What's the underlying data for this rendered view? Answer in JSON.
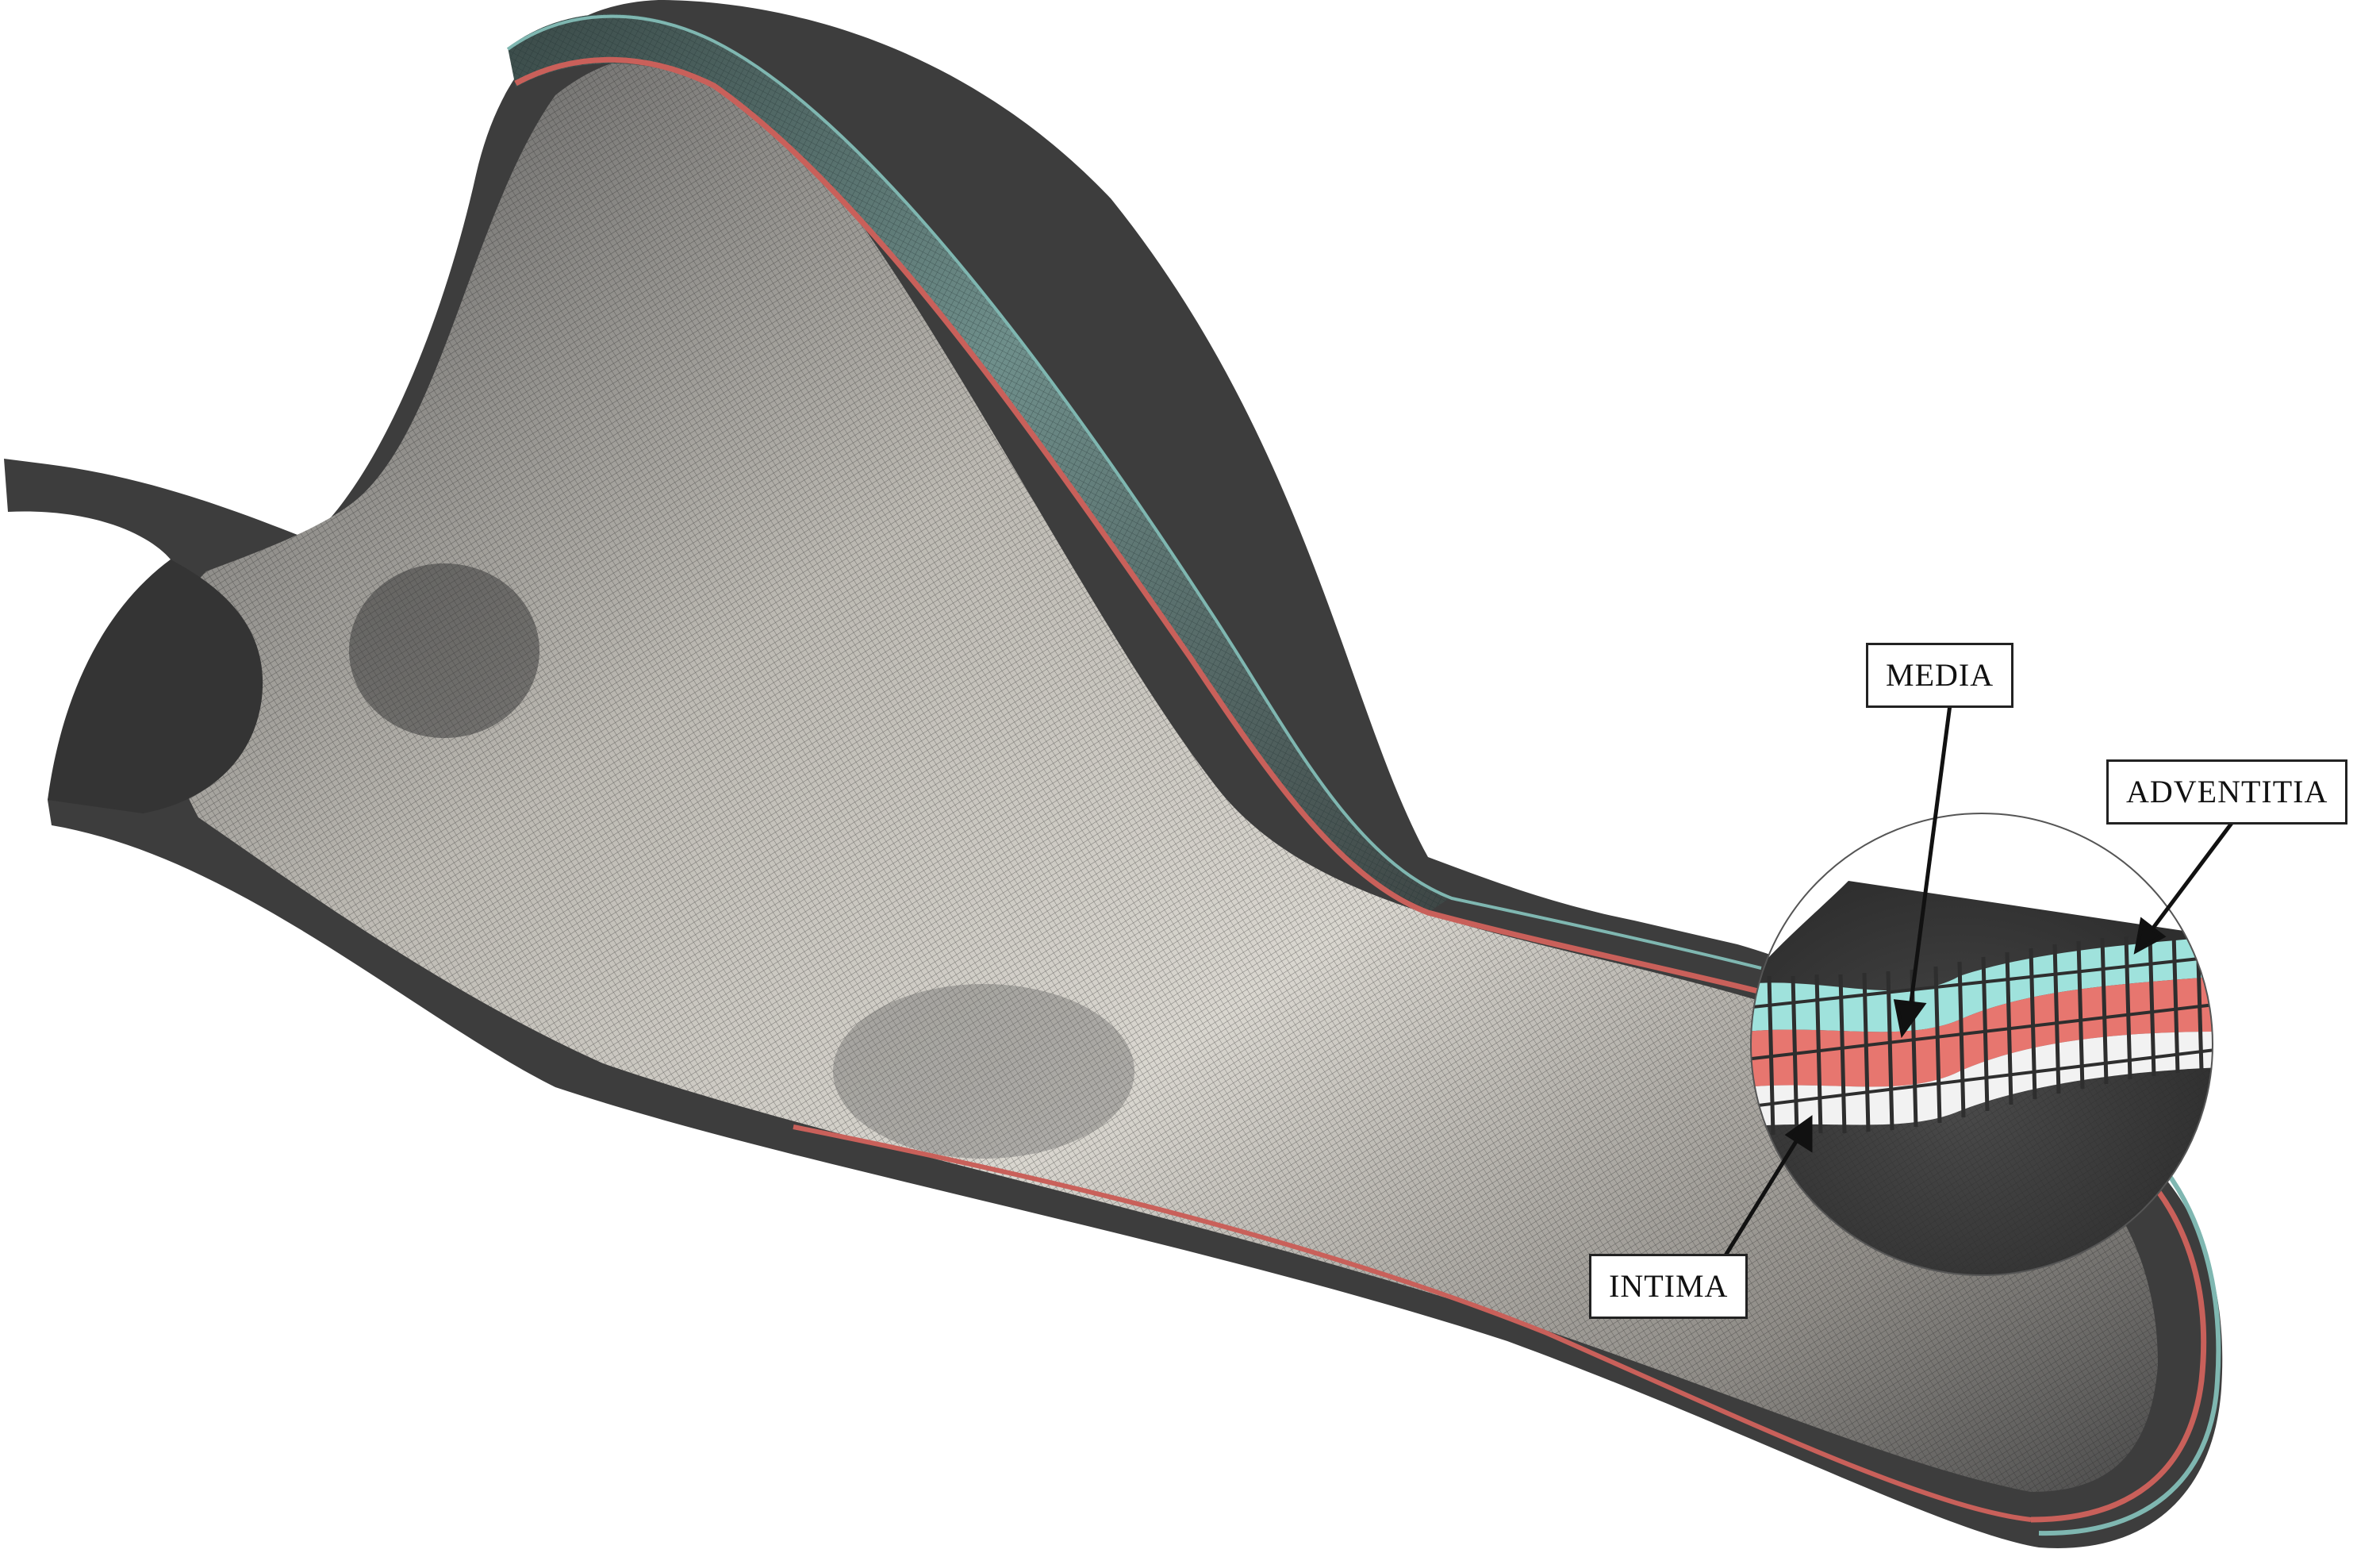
{
  "labels": {
    "media": "MEDIA",
    "adventitia": "ADVENTITIA",
    "intima": "INTIMA"
  },
  "colors": {
    "background": "#ffffff",
    "wall_dark": "#3d3d3d",
    "wall_light": "#e4e2dc",
    "intima_layer": "#f2f2f2",
    "media_layer": "#e7766f",
    "adventitia_layer": "#9fe2dc",
    "label_border": "#222222"
  }
}
